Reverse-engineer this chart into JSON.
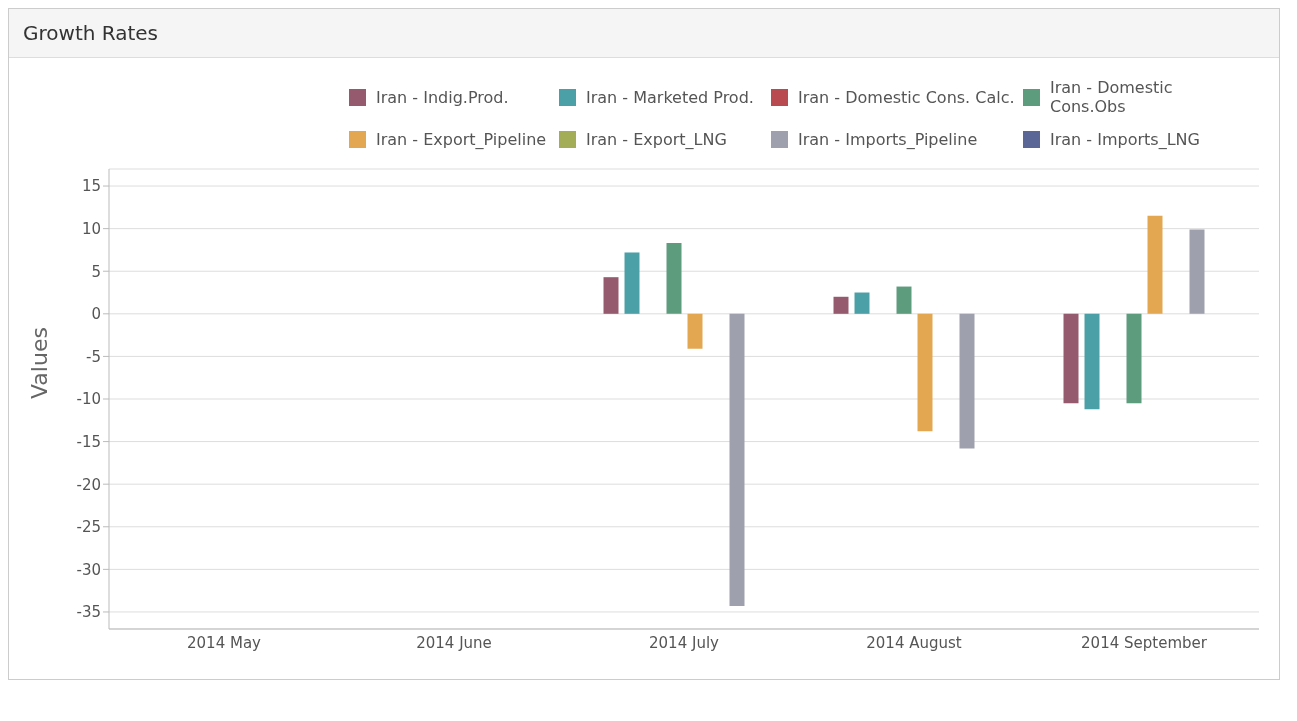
{
  "chart_data": {
    "type": "bar",
    "title": "Growth Rates",
    "ylabel": "Values",
    "categories": [
      "2014 May",
      "2014 June",
      "2014 July",
      "2014 August",
      "2014 September"
    ],
    "series": [
      {
        "name": "Iran - Indig.Prod.",
        "color": "#955a6e",
        "values": [
          null,
          null,
          4.3,
          2.0,
          -10.5
        ]
      },
      {
        "name": "Iran - Marketed Prod.",
        "color": "#4ba0a8",
        "values": [
          null,
          null,
          7.2,
          2.5,
          -11.2
        ]
      },
      {
        "name": "Iran - Domestic Cons. Calc.",
        "color": "#b94a4f",
        "values": [
          null,
          null,
          null,
          null,
          null
        ]
      },
      {
        "name": "Iran - Domestic Cons.Obs",
        "color": "#5e9c7e",
        "values": [
          null,
          null,
          8.3,
          3.2,
          -10.5
        ]
      },
      {
        "name": "Iran - Export_Pipeline",
        "color": "#e3a752",
        "values": [
          null,
          null,
          -4.1,
          -13.8,
          11.5
        ]
      },
      {
        "name": "Iran - Export_LNG",
        "color": "#a3ad57",
        "values": [
          null,
          null,
          null,
          null,
          null
        ]
      },
      {
        "name": "Iran - Imports_Pipeline",
        "color": "#9ea1ad",
        "values": [
          null,
          null,
          -34.3,
          -15.8,
          9.9
        ]
      },
      {
        "name": "Iran - Imports_LNG",
        "color": "#5a6796",
        "values": [
          null,
          null,
          null,
          null,
          null
        ]
      }
    ],
    "ylim": [
      -37,
      17
    ],
    "yticks": [
      -35,
      -30,
      -25,
      -20,
      -15,
      -10,
      -5,
      0,
      5,
      10,
      15
    ],
    "grid": "y",
    "legend": "top"
  }
}
